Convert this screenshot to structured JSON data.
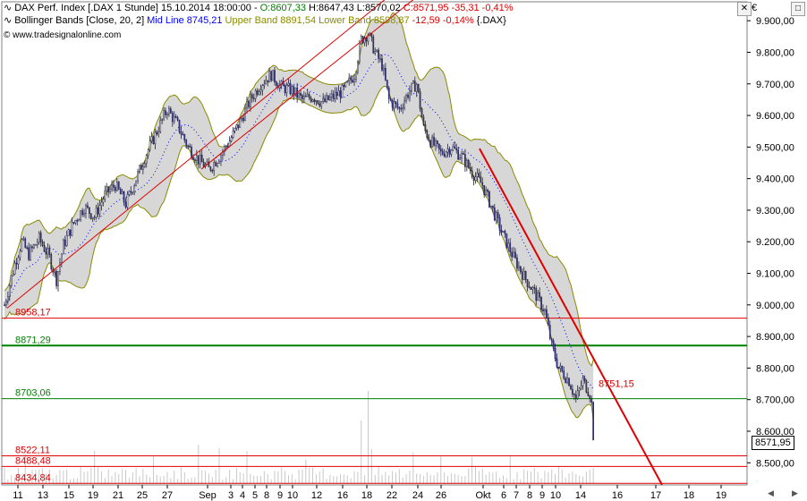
{
  "header": {
    "symbol": "DAX Perf. Index [.DAX",
    "interval": "1 Stunde]",
    "datetime": "15.10.2014 18:00:00 -",
    "open": "O:8607,33",
    "high": "H:8647,43",
    "low": "L:8570,02",
    "close": "C:8571,95",
    "change": "-35,31",
    "change_pct": "-0,41%",
    "bb_prefix": "Bollinger Bands [Close, 20, 2]",
    "bb_mid": "Mid Line 8745,21",
    "bb_upper": "Upper Band 8891,54",
    "bb_lower": "Lower Band 8598,87",
    "bb_change": "-12,59 -0,14%",
    "bb_symbol": "{.DAX}",
    "website": "© www.tradesignalonline.com"
  },
  "currency_symbol": "€",
  "last_price": "8571,95",
  "colors": {
    "candle_up": "#ffffff",
    "candle_down": "#3a3a9a",
    "band_fill": "#d7d7d7",
    "band_line": "#8a8a00",
    "mid_line": "#0000ff",
    "support_green": "#008000",
    "resist_red": "#e00000",
    "trend_red": "#e00000",
    "volume": "#c8c8c8"
  },
  "chart_data": {
    "type": "candlestick",
    "ylim": [
      8430,
      9960
    ],
    "y_ticks": [
      "8.500,00",
      "8.600,00",
      "8.700,00",
      "8.800,00",
      "8.900,00",
      "9.000,00",
      "9.100,00",
      "9.200,00",
      "9.300,00",
      "9.400,00",
      "9.500,00",
      "9.600,00",
      "9.700,00",
      "9.800,00",
      "9.900,00"
    ],
    "x_ticks": [
      "11",
      "13",
      "15",
      "19",
      "21",
      "25",
      "27",
      "Sep",
      "3",
      "4",
      "5",
      "8",
      "9",
      "10",
      "12",
      "16",
      "18",
      "22",
      "24",
      "26",
      "Okt",
      "6",
      "7",
      "8",
      "9",
      "10",
      "14",
      "16",
      "17",
      "18",
      "19"
    ],
    "horizontal_levels": [
      {
        "label": "8958,17",
        "value": 8958.17,
        "color": "red"
      },
      {
        "label": "8871,29",
        "value": 8871.29,
        "color": "green"
      },
      {
        "label": "8703,06",
        "value": 8703.06,
        "color": "green"
      },
      {
        "label": "8522,11",
        "value": 8522.11,
        "color": "red"
      },
      {
        "label": "8488,48",
        "value": 8488.48,
        "color": "red"
      },
      {
        "label": "8434,84",
        "value": 8434.84,
        "color": "red"
      }
    ],
    "trendline_label": "8751,15",
    "price_path": [
      [
        0,
        9000
      ],
      [
        6,
        9130
      ],
      [
        10,
        9200
      ],
      [
        14,
        9160
      ],
      [
        20,
        9210
      ],
      [
        26,
        9150
      ],
      [
        30,
        9080
      ],
      [
        34,
        9190
      ],
      [
        40,
        9260
      ],
      [
        46,
        9310
      ],
      [
        52,
        9280
      ],
      [
        58,
        9350
      ],
      [
        64,
        9380
      ],
      [
        70,
        9320
      ],
      [
        76,
        9400
      ],
      [
        82,
        9480
      ],
      [
        88,
        9550
      ],
      [
        94,
        9620
      ],
      [
        100,
        9570
      ],
      [
        106,
        9500
      ],
      [
        112,
        9460
      ],
      [
        118,
        9430
      ],
      [
        124,
        9470
      ],
      [
        130,
        9520
      ],
      [
        136,
        9580
      ],
      [
        142,
        9650
      ],
      [
        148,
        9700
      ],
      [
        154,
        9730
      ],
      [
        160,
        9690
      ],
      [
        166,
        9680
      ],
      [
        172,
        9650
      ],
      [
        178,
        9660
      ],
      [
        184,
        9640
      ],
      [
        190,
        9660
      ],
      [
        196,
        9680
      ],
      [
        202,
        9730
      ],
      [
        206,
        9840
      ],
      [
        210,
        9860
      ],
      [
        214,
        9800
      ],
      [
        218,
        9760
      ],
      [
        222,
        9650
      ],
      [
        228,
        9620
      ],
      [
        234,
        9680
      ],
      [
        238,
        9700
      ],
      [
        242,
        9560
      ],
      [
        246,
        9520
      ],
      [
        252,
        9480
      ],
      [
        258,
        9500
      ],
      [
        264,
        9470
      ],
      [
        270,
        9420
      ],
      [
        276,
        9380
      ],
      [
        282,
        9300
      ],
      [
        288,
        9220
      ],
      [
        294,
        9150
      ],
      [
        300,
        9090
      ],
      [
        306,
        9040
      ],
      [
        312,
        8980
      ],
      [
        316,
        8870
      ],
      [
        320,
        8800
      ],
      [
        326,
        8760
      ],
      [
        330,
        8700
      ],
      [
        334,
        8760
      ],
      [
        338,
        8720
      ],
      [
        342,
        8580
      ]
    ]
  }
}
